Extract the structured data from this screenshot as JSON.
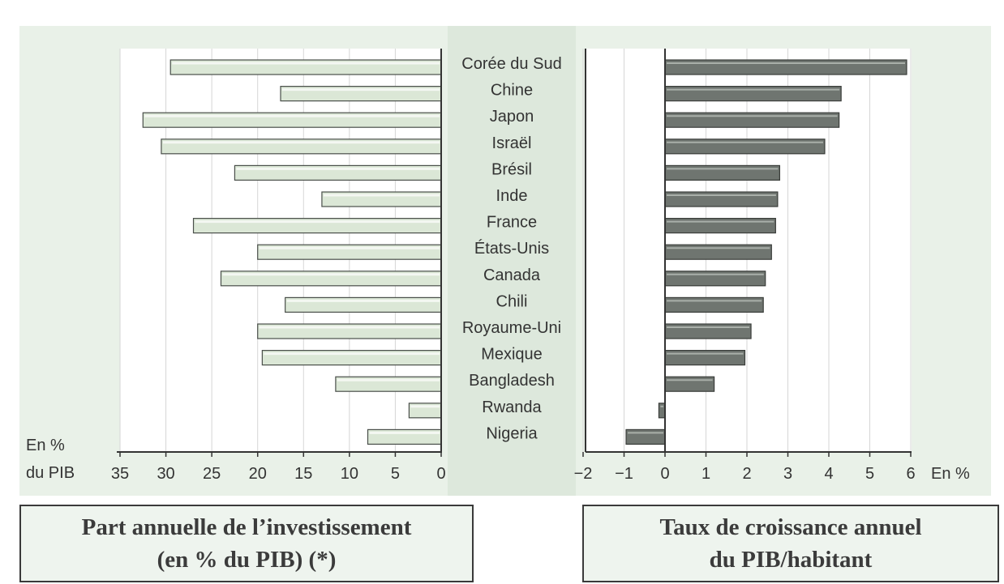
{
  "chart_data": [
    {
      "type": "bar",
      "orientation": "horizontal",
      "direction": "right-to-left",
      "categories": [
        "Corée du Sud",
        "Chine",
        "Japon",
        "Israël",
        "Brésil",
        "Inde",
        "France",
        "États-Unis",
        "Canada",
        "Chili",
        "Royaume-Uni",
        "Mexique",
        "Bangladesh",
        "Rwanda",
        "Nigeria"
      ],
      "values": [
        29.5,
        17.5,
        32.5,
        30.5,
        22.5,
        13,
        27,
        20,
        24,
        17,
        20,
        19.5,
        11.5,
        3.5,
        8
      ],
      "title": "Part annuelle de l’investissement (en % du PIB) (*)",
      "xlabel": "En % du PIB",
      "xlabel_lines": [
        "En %",
        "du PIB"
      ],
      "xlim": [
        35,
        0
      ],
      "xticks": [
        "35",
        "30",
        "25",
        "20",
        "15",
        "10",
        "5",
        "0"
      ],
      "grid": true,
      "bar_color": "#dbe7d6"
    },
    {
      "type": "bar",
      "orientation": "horizontal",
      "categories": [
        "Corée du Sud",
        "Chine",
        "Japon",
        "Israël",
        "Brésil",
        "Inde",
        "France",
        "États-Unis",
        "Canada",
        "Chili",
        "Royaume-Uni",
        "Mexique",
        "Bangladesh",
        "Rwanda",
        "Nigeria"
      ],
      "values": [
        5.9,
        4.3,
        4.25,
        3.9,
        2.8,
        2.75,
        2.7,
        2.6,
        2.45,
        2.4,
        2.1,
        1.95,
        1.2,
        -0.15,
        -0.95
      ],
      "title": "Taux de croissance annuel du PIB/habitant",
      "xlabel": "En %",
      "xlim": [
        -2,
        6
      ],
      "xticks": [
        "−2",
        "−1",
        "0",
        "1",
        "2",
        "3",
        "4",
        "5",
        "6"
      ],
      "grid": true,
      "bar_color": "#6f7570"
    }
  ],
  "captions": {
    "left_line1": "Part annuelle de l’investissement",
    "left_line2": "(en % du PIB) (*)",
    "right_line1": "Taux de croissance annuel",
    "right_line2": "du PIB/habitant"
  },
  "colors": {
    "background": "#e9f1e8",
    "center_band": "#dde8dc",
    "plot_area": "#ffffff",
    "axis": "#333333",
    "text": "#333333"
  }
}
